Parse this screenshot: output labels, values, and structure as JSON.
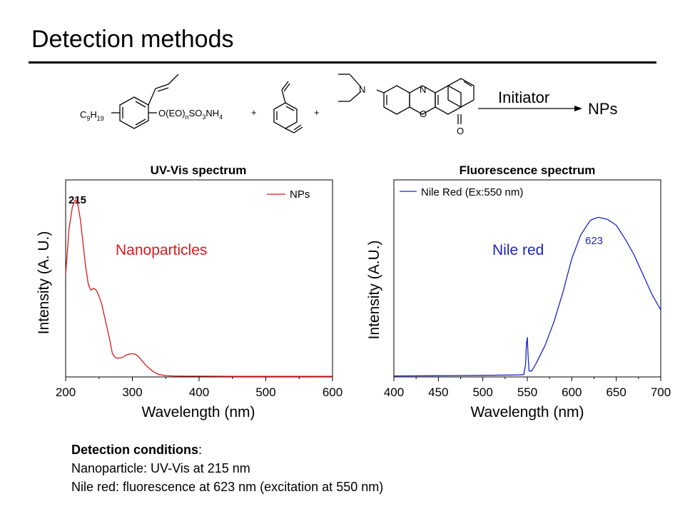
{
  "slide": {
    "title": "Detection methods"
  },
  "scheme": {
    "monomer_left_top": "C",
    "c9h19": [
      "C",
      "9",
      "H",
      "19"
    ],
    "surfactant": [
      "O(EO)",
      "n",
      "SO",
      "3",
      "NH",
      "4"
    ],
    "plus": "+",
    "dye_N_label": "N",
    "dye_ring_N": "N",
    "dye_ring_O": "O",
    "dye_carbonyl_O": "O",
    "arrow_label": "Initiator",
    "product": "NPs"
  },
  "chart_data": [
    {
      "type": "line",
      "title": "UV-Vis spectrum",
      "xlabel": "Wavelength (nm)",
      "ylabel": "Intensity (A. U.)",
      "xlim": [
        200,
        600
      ],
      "xticks": [
        "200",
        "300",
        "400",
        "500",
        "600"
      ],
      "legend": {
        "position": "top-right",
        "entries": [
          "NPs"
        ]
      },
      "annotations": [
        "215",
        "Nanoparticles"
      ],
      "color": "#d81a1a",
      "series": [
        {
          "name": "NPs",
          "x": [
            200,
            205,
            210,
            213,
            215,
            218,
            222,
            226,
            230,
            234,
            238,
            242,
            246,
            250,
            254,
            258,
            262,
            266,
            270,
            274,
            278,
            282,
            286,
            290,
            295,
            300,
            305,
            310,
            315,
            320,
            325,
            330,
            335,
            340,
            350,
            360,
            380,
            400,
            450,
            500,
            550,
            600
          ],
          "y": [
            0.52,
            0.75,
            0.86,
            0.89,
            0.9,
            0.88,
            0.8,
            0.68,
            0.56,
            0.47,
            0.44,
            0.45,
            0.44,
            0.41,
            0.37,
            0.31,
            0.25,
            0.19,
            0.12,
            0.1,
            0.095,
            0.097,
            0.1,
            0.11,
            0.116,
            0.118,
            0.115,
            0.1,
            0.08,
            0.06,
            0.045,
            0.03,
            0.02,
            0.012,
            0.007,
            0.005,
            0.004,
            0.004,
            0.003,
            0.003,
            0.003,
            0.003
          ]
        }
      ]
    },
    {
      "type": "line",
      "title": "Fluorescence spectrum",
      "xlabel": "Wavelength (nm)",
      "ylabel": "Intensity (A.U.)",
      "xlim": [
        400,
        700
      ],
      "xticks": [
        "400",
        "450",
        "500",
        "550",
        "600",
        "650",
        "700"
      ],
      "legend": {
        "position": "top-left",
        "entries": [
          "Nile Red (Ex:550 nm)"
        ]
      },
      "annotations": [
        "623",
        "Nile red"
      ],
      "color": "#1a24c8",
      "series": [
        {
          "name": "Nile Red (Ex:550 nm)",
          "x": [
            400,
            450,
            500,
            540,
            546,
            548,
            549,
            550,
            551,
            552,
            555,
            560,
            570,
            580,
            590,
            600,
            610,
            620,
            623,
            630,
            640,
            650,
            660,
            670,
            680,
            690,
            700
          ],
          "y": [
            0.005,
            0.006,
            0.008,
            0.01,
            0.012,
            0.06,
            0.17,
            0.2,
            0.1,
            0.03,
            0.03,
            0.07,
            0.16,
            0.28,
            0.43,
            0.6,
            0.72,
            0.79,
            0.8,
            0.81,
            0.8,
            0.77,
            0.7,
            0.62,
            0.52,
            0.42,
            0.34
          ]
        }
      ]
    }
  ],
  "conditions": {
    "heading": "Detection conditions",
    "heading_suffix": ":",
    "line1": "Nanoparticle: UV-Vis at 215 nm",
    "line2": "Nile red: fluorescence at 623 nm (excitation at 550 nm)"
  }
}
